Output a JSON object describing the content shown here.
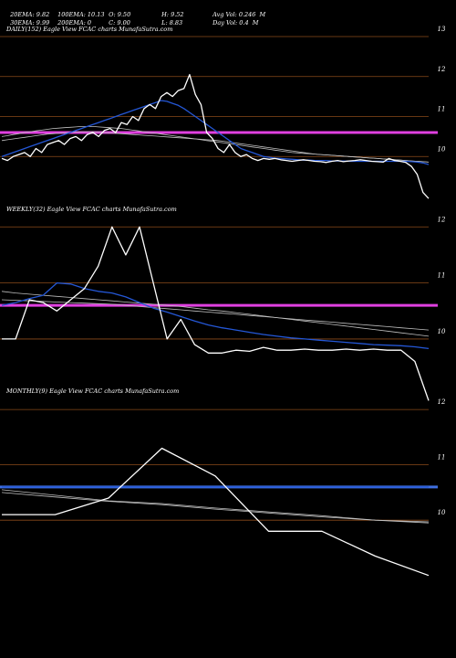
{
  "header": {
    "row1": [
      {
        "label": "20EMA: 9.82"
      },
      {
        "label": "100EMA: 10.13"
      },
      {
        "label": "O: 9.50"
      },
      {
        "label": "H: 9.52"
      },
      {
        "label": "Avg Vol: 0.246  M"
      }
    ],
    "row2": [
      {
        "label": "30EMA: 9.99"
      },
      {
        "label": "200EMA: 0"
      },
      {
        "label": "C: 9.00"
      },
      {
        "label": "L: 8.83"
      },
      {
        "label": "Day Vol: 0.4  M"
      }
    ]
  },
  "colors": {
    "background": "#000000",
    "price": "#ffffff",
    "ema_fast": "#2457d6",
    "ema_slow": "#bfbfbf",
    "gridline": "#8a4a1a",
    "support_daily": "#e040e0",
    "support_monthly": "#3f6fe0"
  },
  "chart_data": [
    {
      "type": "line",
      "title": "DAILY(152) Eagle  View  FCAC charts MunafaSutra.com",
      "ylim": [
        9.0,
        13.0
      ],
      "y_ticks": [
        10,
        11,
        12,
        13
      ],
      "tick_labels": [
        "10",
        "11",
        "12",
        "13"
      ],
      "support_level": 10.6,
      "series": [
        {
          "role": "price",
          "values": [
            9.95,
            9.9,
            10.0,
            10.05,
            10.1,
            10.0,
            10.2,
            10.1,
            10.3,
            10.35,
            10.4,
            10.3,
            10.45,
            10.5,
            10.4,
            10.55,
            10.6,
            10.5,
            10.65,
            10.7,
            10.6,
            10.85,
            10.8,
            11.0,
            10.9,
            11.2,
            11.3,
            11.2,
            11.5,
            11.6,
            11.5,
            11.65,
            11.7,
            12.05,
            11.55,
            11.3,
            10.6,
            10.45,
            10.2,
            10.1,
            10.3,
            10.1,
            10.0,
            10.05,
            9.95,
            9.9,
            9.95,
            9.93,
            9.95,
            9.92,
            9.9,
            9.88,
            9.9,
            9.92,
            9.9,
            9.88,
            9.87,
            9.85,
            9.88,
            9.9,
            9.87,
            9.89,
            9.9,
            9.92,
            9.9,
            9.88,
            9.87,
            9.86,
            9.95,
            9.9,
            9.88,
            9.85,
            9.75,
            9.55,
            9.1,
            8.95
          ]
        },
        {
          "role": "ema_fast",
          "values": [
            10.0,
            10.05,
            10.1,
            10.15,
            10.2,
            10.25,
            10.3,
            10.35,
            10.4,
            10.45,
            10.5,
            10.55,
            10.6,
            10.65,
            10.7,
            10.75,
            10.8,
            10.85,
            10.9,
            10.95,
            11.0,
            11.05,
            11.1,
            11.15,
            11.2,
            11.25,
            11.3,
            11.35,
            11.4,
            11.38,
            11.33,
            11.28,
            11.2,
            11.1,
            11.0,
            10.9,
            10.8,
            10.7,
            10.6,
            10.5,
            10.4,
            10.3,
            10.2,
            10.15,
            10.1,
            10.05,
            10.0,
            9.98,
            9.96,
            9.95,
            9.94,
            9.93,
            9.92,
            9.91,
            9.91,
            9.9,
            9.9,
            9.9,
            9.89,
            9.89,
            9.89,
            9.88,
            9.88,
            9.88,
            9.88,
            9.88,
            9.88,
            9.88,
            9.88,
            9.88,
            9.88,
            9.88,
            9.87,
            9.86,
            9.84,
            9.8
          ]
        },
        {
          "role": "ema_slow",
          "values": [
            10.5,
            10.52,
            10.55,
            10.57,
            10.6,
            10.62,
            10.64,
            10.66,
            10.68,
            10.7,
            10.71,
            10.72,
            10.73,
            10.74,
            10.75,
            10.75,
            10.75,
            10.74,
            10.73,
            10.72,
            10.71,
            10.7,
            10.68,
            10.66,
            10.64,
            10.62,
            10.6,
            10.58,
            10.56,
            10.54,
            10.52,
            10.5,
            10.48,
            10.46,
            10.44,
            10.42,
            10.4,
            10.38,
            10.36,
            10.34,
            10.32,
            10.3,
            10.28,
            10.26,
            10.24,
            10.22,
            10.2,
            10.18,
            10.16,
            10.14,
            10.12,
            10.1,
            10.09,
            10.08,
            10.07,
            10.06,
            10.05,
            10.04,
            10.03,
            10.02,
            10.01,
            10.0,
            9.99,
            9.98,
            9.97,
            9.96,
            9.95,
            9.94,
            9.93,
            9.92,
            9.91,
            9.9,
            9.89,
            9.88,
            9.87,
            9.86
          ]
        },
        {
          "role": "ema_slow2",
          "values": [
            10.4,
            10.42,
            10.44,
            10.46,
            10.48,
            10.5,
            10.52,
            10.54,
            10.56,
            10.57,
            10.58,
            10.59,
            10.6,
            10.61,
            10.62,
            10.62,
            10.62,
            10.61,
            10.6,
            10.59,
            10.58,
            10.57,
            10.56,
            10.55,
            10.54,
            10.53,
            10.52,
            10.51,
            10.5,
            10.49,
            10.48,
            10.47,
            10.46,
            10.45,
            10.44,
            10.43,
            10.42,
            10.41,
            10.4,
            10.38,
            10.36,
            10.34,
            10.32,
            10.3,
            10.28,
            10.26,
            10.24,
            10.22,
            10.2,
            10.18,
            10.16,
            10.14,
            10.12,
            10.1,
            10.08,
            10.06,
            10.05,
            10.04,
            10.03,
            10.02,
            10.01,
            10.0,
            9.99,
            9.98,
            9.97,
            9.96,
            9.95,
            9.94,
            9.93,
            9.92,
            9.91,
            9.9,
            9.89,
            9.88,
            9.87,
            9.86
          ]
        }
      ]
    },
    {
      "type": "line",
      "title": "WEEKLY(32) Eagle  View  FCAC charts MunafaSutra.com",
      "ylim": [
        9.2,
        12.2
      ],
      "y_ticks": [
        10,
        11,
        12
      ],
      "tick_labels": [
        "10",
        "11",
        "12"
      ],
      "support_level": 10.6,
      "series": [
        {
          "role": "price",
          "values": [
            10.0,
            10.0,
            10.7,
            10.65,
            10.5,
            10.7,
            10.9,
            11.3,
            12.0,
            11.5,
            12.0,
            11.0,
            10.0,
            10.35,
            9.9,
            9.75,
            9.75,
            9.8,
            9.78,
            9.85,
            9.8,
            9.8,
            9.82,
            9.8,
            9.8,
            9.82,
            9.8,
            9.82,
            9.8,
            9.8,
            9.6,
            8.9
          ]
        },
        {
          "role": "ema_fast",
          "values": [
            10.6,
            10.65,
            10.72,
            10.78,
            11.0,
            10.98,
            10.9,
            10.85,
            10.82,
            10.75,
            10.65,
            10.55,
            10.48,
            10.4,
            10.32,
            10.25,
            10.2,
            10.16,
            10.12,
            10.08,
            10.05,
            10.02,
            10.0,
            9.98,
            9.96,
            9.94,
            9.92,
            9.9,
            9.89,
            9.88,
            9.86,
            9.83
          ]
        },
        {
          "role": "ema_slow",
          "values": [
            10.85,
            10.82,
            10.8,
            10.78,
            10.76,
            10.74,
            10.72,
            10.7,
            10.68,
            10.66,
            10.64,
            10.62,
            10.6,
            10.58,
            10.55,
            10.52,
            10.5,
            10.47,
            10.44,
            10.41,
            10.38,
            10.35,
            10.32,
            10.29,
            10.26,
            10.23,
            10.2,
            10.17,
            10.14,
            10.11,
            10.08,
            10.05
          ]
        },
        {
          "role": "ema_slow2",
          "values": [
            10.7,
            10.69,
            10.68,
            10.67,
            10.66,
            10.65,
            10.64,
            10.63,
            10.62,
            10.6,
            10.58,
            10.56,
            10.54,
            10.52,
            10.5,
            10.48,
            10.46,
            10.44,
            10.42,
            10.4,
            10.38,
            10.36,
            10.34,
            10.32,
            10.3,
            10.28,
            10.26,
            10.24,
            10.22,
            10.2,
            10.18,
            10.16
          ]
        }
      ]
    },
    {
      "type": "line",
      "title": "MONTHLY(9) Eagle  View  FCAC charts MunafaSutra.com",
      "ylim": [
        8.5,
        12.2
      ],
      "y_ticks": [
        10,
        11,
        12
      ],
      "tick_labels": [
        "10",
        "11",
        "12"
      ],
      "support_level": 10.6,
      "series": [
        {
          "role": "price",
          "values": [
            10.1,
            10.1,
            10.4,
            11.3,
            10.8,
            9.8,
            9.8,
            9.35,
            9.0
          ]
        },
        {
          "role": "ema_fast",
          "values": [
            10.6,
            10.6,
            10.6,
            10.6,
            10.6,
            10.6,
            10.6,
            10.6,
            10.6
          ]
        },
        {
          "role": "ema_slow",
          "values": [
            10.55,
            10.45,
            10.35,
            10.3,
            10.22,
            10.15,
            10.08,
            10.0,
            9.95
          ]
        },
        {
          "role": "ema_slow2",
          "values": [
            10.5,
            10.42,
            10.34,
            10.28,
            10.2,
            10.13,
            10.06,
            10.0,
            9.97
          ]
        }
      ]
    }
  ]
}
